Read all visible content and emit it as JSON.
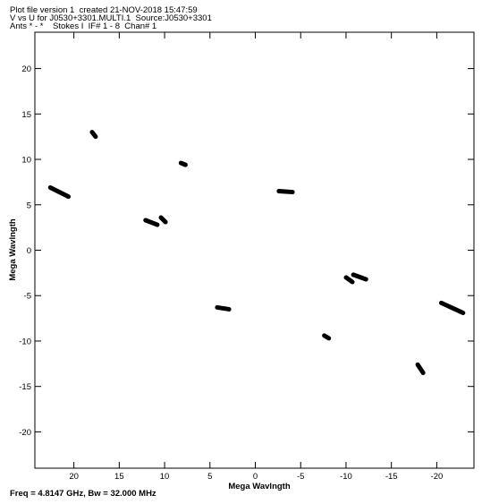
{
  "header": {
    "line1": "Plot file version 1  created 21-NOV-2018 15:47:59",
    "line2": "V vs U for J0530+3301.MULTI.1  Source:J0530+3301",
    "line3": "Ants * - *    Stokes I  IF# 1 - 8  Chan# 1"
  },
  "footer": {
    "text": "Freq = 4.8147 GHz, Bw = 32.000 MHz"
  },
  "chart_data": {
    "type": "scatter",
    "title": "",
    "xlabel": "Mega Wavlngth",
    "ylabel": "Mega Wavlngth",
    "xlim": [
      24.3,
      -24.1
    ],
    "ylim": [
      -24.0,
      24.0
    ],
    "x_reversed": true,
    "grid": false,
    "xticks": [
      20,
      15,
      10,
      5,
      0,
      -5,
      -10,
      -15,
      -20
    ],
    "yticks": [
      20,
      15,
      10,
      5,
      0,
      -5,
      -10,
      -15,
      -20
    ],
    "xtick_labels": [
      "20",
      "15",
      "10",
      "5",
      "0",
      "-5",
      "-10",
      "-15",
      "-20"
    ],
    "ytick_labels": [
      "20",
      "15",
      "10",
      "5",
      "0",
      "-5",
      "-10",
      "-15",
      "-20"
    ],
    "series": [
      {
        "tracks": [
          {
            "from": [
              18.0,
              13.0
            ],
            "to": [
              17.6,
              12.5
            ]
          },
          {
            "from": [
              22.6,
              6.9
            ],
            "to": [
              20.6,
              5.9
            ]
          },
          {
            "from": [
              12.1,
              3.3
            ],
            "to": [
              10.8,
              2.8
            ]
          },
          {
            "from": [
              10.4,
              3.6
            ],
            "to": [
              9.9,
              3.1
            ]
          },
          {
            "from": [
              8.2,
              9.6
            ],
            "to": [
              7.7,
              9.4
            ]
          },
          {
            "from": [
              -2.6,
              6.5
            ],
            "to": [
              -4.1,
              6.4
            ]
          },
          {
            "from": [
              4.2,
              -6.3
            ],
            "to": [
              2.9,
              -6.5
            ]
          },
          {
            "from": [
              -7.6,
              -9.4
            ],
            "to": [
              -8.1,
              -9.7
            ]
          },
          {
            "from": [
              -10.0,
              -3.0
            ],
            "to": [
              -10.7,
              -3.5
            ]
          },
          {
            "from": [
              -10.8,
              -2.7
            ],
            "to": [
              -12.2,
              -3.2
            ]
          },
          {
            "from": [
              -17.9,
              -12.6
            ],
            "to": [
              -18.5,
              -13.5
            ]
          },
          {
            "from": [
              -20.5,
              -5.8
            ],
            "to": [
              -22.9,
              -6.9
            ]
          }
        ]
      }
    ]
  }
}
